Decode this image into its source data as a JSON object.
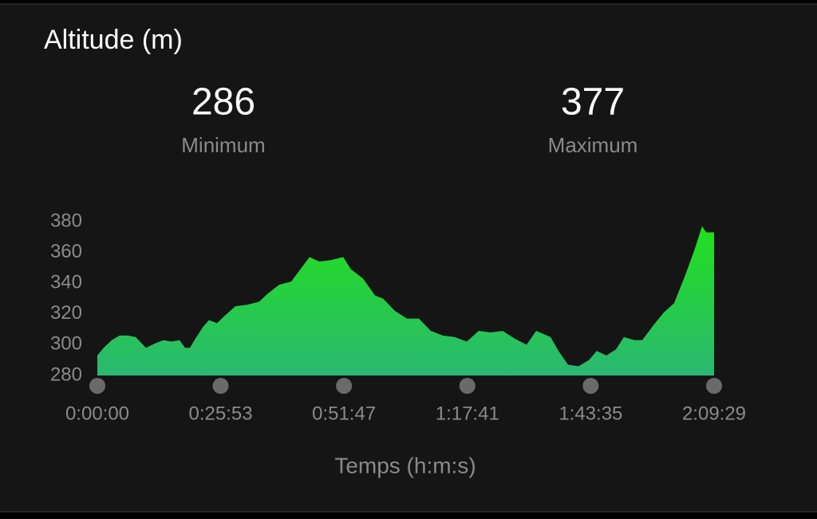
{
  "chart_data": {
    "type": "area",
    "title": "Altitude (m)",
    "stats": [
      {
        "value": 286,
        "label": "Minimum"
      },
      {
        "value": 377,
        "label": "Maximum"
      }
    ],
    "x_label": "Temps (h:m:s)",
    "x": [
      0,
      80,
      181,
      281,
      382,
      482,
      613,
      734,
      834,
      935,
      1035,
      1106,
      1166,
      1236,
      1337,
      1407,
      1508,
      1588,
      1739,
      1889,
      2040,
      2141,
      2291,
      2442,
      2543,
      2673,
      2794,
      2945,
      3096,
      3196,
      3347,
      3498,
      3598,
      3749,
      3900,
      4050,
      4201,
      4352,
      4503,
      4653,
      4804,
      4955,
      5106,
      5256,
      5407,
      5528,
      5709,
      5809,
      5930,
      6061,
      6191,
      6292,
      6412,
      6533,
      6633,
      6764,
      6864,
      6995,
      7136,
      7266,
      7397,
      7518,
      7618,
      7669,
      7769
    ],
    "values": [
      293,
      298,
      303,
      306,
      306,
      305,
      298,
      301,
      303,
      302,
      303,
      298,
      298,
      304,
      312,
      316,
      314,
      318,
      325,
      326,
      328,
      333,
      339,
      341,
      348,
      357,
      354,
      355,
      357,
      349,
      343,
      332,
      330,
      322,
      317,
      317,
      309,
      306,
      305,
      302,
      309,
      308,
      309,
      304,
      300,
      309,
      305,
      296,
      287,
      286,
      290,
      296,
      293,
      297,
      305,
      303,
      303,
      312,
      321,
      327,
      344,
      361,
      377,
      373,
      373
    ],
    "color": "#22e01c",
    "ylim": [
      280,
      380
    ],
    "yticks": [
      280,
      300,
      320,
      340,
      360,
      380
    ],
    "xlim": [
      0,
      7769
    ],
    "xticks": [
      {
        "value": 0,
        "label": "0:00:00"
      },
      {
        "value": 1553,
        "label": "0:25:53"
      },
      {
        "value": 3107,
        "label": "0:51:47"
      },
      {
        "value": 4661,
        "label": "1:17:41"
      },
      {
        "value": 6215,
        "label": "1:43:35"
      },
      {
        "value": 7769,
        "label": "2:09:29"
      }
    ]
  }
}
